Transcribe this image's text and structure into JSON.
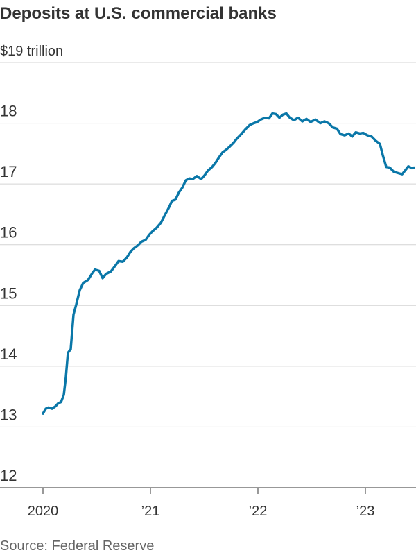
{
  "chart_data": {
    "type": "line",
    "title": "Deposits at U.S. commercial banks",
    "source": "Source: Federal Reserve",
    "x": [
      2020.0,
      2020.026,
      2020.052,
      2020.084,
      2020.116,
      2020.142,
      2020.168,
      2020.194,
      2020.213,
      2020.232,
      2020.258,
      2020.284,
      2020.31,
      2020.342,
      2020.374,
      2020.419,
      2020.458,
      2020.484,
      2020.523,
      2020.555,
      2020.587,
      2020.632,
      2020.671,
      2020.703,
      2020.742,
      2020.781,
      2020.813,
      2020.845,
      2020.884,
      2020.916,
      2020.955,
      2020.987,
      2021.019,
      2021.058,
      2021.097,
      2021.135,
      2021.174,
      2021.2,
      2021.232,
      2021.265,
      2021.297,
      2021.329,
      2021.361,
      2021.394,
      2021.432,
      2021.471,
      2021.503,
      2021.535,
      2021.574,
      2021.606,
      2021.639,
      2021.671,
      2021.703,
      2021.735,
      2021.774,
      2021.806,
      2021.845,
      2021.884,
      2021.923,
      2021.961,
      2021.994,
      2022.026,
      2022.065,
      2022.103,
      2022.135,
      2022.168,
      2022.2,
      2022.232,
      2022.265,
      2022.297,
      2022.335,
      2022.374,
      2022.413,
      2022.452,
      2022.49,
      2022.535,
      2022.581,
      2022.619,
      2022.658,
      2022.697,
      2022.735,
      2022.768,
      2022.806,
      2022.845,
      2022.877,
      2022.91,
      2022.948,
      2022.981,
      2023.019,
      2023.058,
      2023.097,
      2023.135,
      2023.161,
      2023.194,
      2023.226,
      2023.265,
      2023.303,
      2023.342,
      2023.374,
      2023.4,
      2023.432,
      2023.452
    ],
    "series": [
      {
        "color": "#0a77a8",
        "values": [
          13.22,
          13.3,
          13.32,
          13.3,
          13.34,
          13.39,
          13.41,
          13.53,
          13.82,
          14.22,
          14.28,
          14.85,
          15.02,
          15.25,
          15.37,
          15.42,
          15.53,
          15.59,
          15.57,
          15.45,
          15.52,
          15.56,
          15.65,
          15.73,
          15.72,
          15.79,
          15.88,
          15.94,
          15.99,
          16.05,
          16.08,
          16.16,
          16.22,
          16.28,
          16.36,
          16.49,
          16.62,
          16.72,
          16.74,
          16.86,
          16.94,
          17.06,
          17.09,
          17.08,
          17.13,
          17.08,
          17.14,
          17.22,
          17.28,
          17.35,
          17.44,
          17.52,
          17.56,
          17.61,
          17.68,
          17.75,
          17.82,
          17.9,
          17.97,
          18.0,
          18.02,
          18.06,
          18.09,
          18.08,
          18.16,
          18.15,
          18.09,
          18.14,
          18.16,
          18.09,
          18.05,
          18.09,
          18.03,
          18.07,
          18.02,
          18.06,
          18.0,
          18.03,
          18.0,
          17.93,
          17.91,
          17.82,
          17.8,
          17.83,
          17.78,
          17.85,
          17.83,
          17.84,
          17.8,
          17.78,
          17.71,
          17.66,
          17.48,
          17.28,
          17.27,
          17.2,
          17.18,
          17.16,
          17.23,
          17.29,
          17.26,
          17.27
        ]
      }
    ],
    "xlim": [
      2019.6,
      2023.471
    ],
    "xticks": [
      2020,
      {
        "value": 2021,
        "label": "’21"
      },
      {
        "value": 2022,
        "label": "’22"
      },
      {
        "value": 2023,
        "label": "’23"
      }
    ],
    "ylim": [
      12,
      19
    ],
    "yticks": [
      12,
      13,
      14,
      15,
      16,
      17,
      18,
      {
        "value": 19,
        "label": "$19 trillion"
      }
    ],
    "grid": true
  }
}
